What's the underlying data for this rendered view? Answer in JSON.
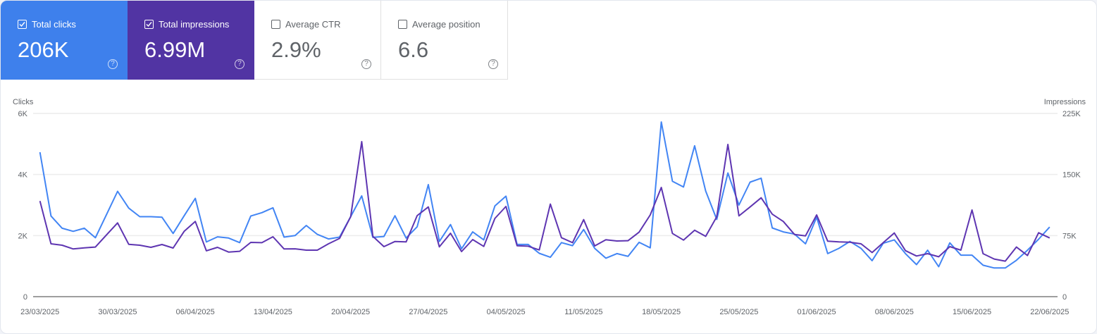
{
  "metrics": [
    {
      "label": "Total clicks",
      "value": "206K",
      "checked": true,
      "color": "#3e80ec"
    },
    {
      "label": "Total impressions",
      "value": "6.99M",
      "checked": true,
      "color": "#5134a3"
    },
    {
      "label": "Average CTR",
      "value": "2.9%",
      "checked": false
    },
    {
      "label": "Average position",
      "value": "6.6",
      "checked": false
    }
  ],
  "help_icon": "?",
  "chart_data": {
    "type": "line",
    "left_axis": {
      "label": "Clicks",
      "ticks": [
        "0",
        "2K",
        "4K",
        "6K"
      ],
      "range": [
        0,
        6000
      ]
    },
    "right_axis": {
      "label": "Impressions",
      "ticks": [
        "0",
        "75K",
        "150K",
        "225K"
      ],
      "range": [
        0,
        225000
      ]
    },
    "x_tick_labels": [
      "23/03/2025",
      "30/03/2025",
      "06/04/2025",
      "13/04/2025",
      "20/04/2025",
      "27/04/2025",
      "04/05/2025",
      "11/05/2025",
      "18/05/2025",
      "25/05/2025",
      "01/06/2025",
      "08/06/2025",
      "15/06/2025",
      "22/06/2025"
    ],
    "x_range": [
      "23/03/2025",
      "22/06/2025"
    ],
    "x_interval": "daily",
    "grid": true,
    "series": [
      {
        "name": "Clicks",
        "axis": "left",
        "color": "#4285f4",
        "values": [
          4730,
          2640,
          2240,
          2140,
          2240,
          1930,
          2690,
          3450,
          2900,
          2620,
          2620,
          2600,
          2070,
          2650,
          3220,
          1790,
          1960,
          1920,
          1770,
          2640,
          2750,
          2910,
          1950,
          2000,
          2330,
          2040,
          1890,
          1950,
          2620,
          3300,
          1940,
          1970,
          2650,
          1920,
          2290,
          3670,
          1810,
          2360,
          1570,
          2120,
          1860,
          2970,
          3290,
          1710,
          1710,
          1420,
          1290,
          1770,
          1670,
          2200,
          1580,
          1260,
          1410,
          1320,
          1780,
          1600,
          5720,
          3780,
          3590,
          4940,
          3460,
          2530,
          4050,
          3000,
          3750,
          3880,
          2250,
          2120,
          2050,
          1730,
          2600,
          1410,
          1580,
          1810,
          1580,
          1180,
          1750,
          1860,
          1410,
          1050,
          1520,
          980,
          1760,
          1360,
          1360,
          1030,
          940,
          940,
          1190,
          1520,
          1880,
          2280
        ]
      },
      {
        "name": "Impressions",
        "axis": "right",
        "color": "#5e35b1",
        "values": [
          117400,
          64900,
          63200,
          58600,
          60000,
          60900,
          75900,
          90600,
          64300,
          63200,
          60600,
          64000,
          59700,
          80200,
          92300,
          56300,
          60600,
          54800,
          55700,
          66600,
          66300,
          73600,
          58600,
          58800,
          57100,
          57100,
          64900,
          71500,
          98100,
          190400,
          74100,
          61400,
          67800,
          67200,
          99500,
          110200,
          61200,
          77900,
          55400,
          70100,
          61700,
          96100,
          110800,
          62600,
          62000,
          57400,
          113700,
          72400,
          66300,
          94600,
          62300,
          69800,
          68400,
          68700,
          79300,
          100400,
          134100,
          77600,
          69500,
          81600,
          74100,
          98100,
          186900,
          99200,
          110200,
          121400,
          101300,
          92300,
          76400,
          74700,
          100400,
          68100,
          67200,
          66900,
          64900,
          54200,
          66300,
          78200,
          56500,
          49900,
          52800,
          49000,
          61400,
          57100,
          106400,
          52800,
          46200,
          43600,
          60900,
          50500,
          78500,
          72100
        ]
      }
    ]
  }
}
